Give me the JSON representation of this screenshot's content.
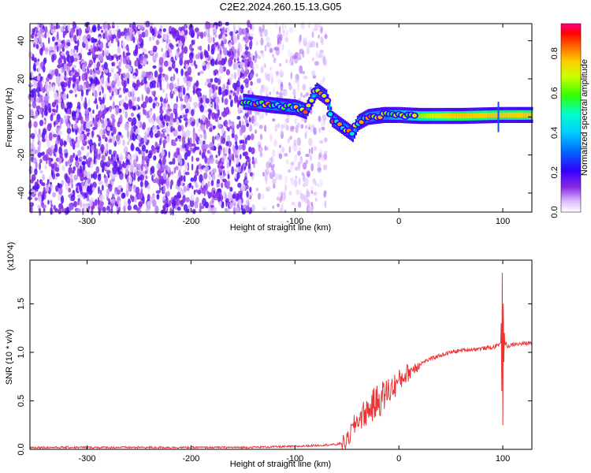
{
  "title": "C2E2.2024.260.15.13.G05",
  "chart_data": [
    {
      "type": "heatmap",
      "xlabel": "Height of straight line (km)",
      "ylabel": "Frequency (Hz)",
      "xlim": [
        -355,
        128
      ],
      "ylim": [
        -50,
        49
      ],
      "x_ticks": [
        -300,
        -200,
        -100,
        0,
        100
      ],
      "y_ticks": [
        -40,
        -20,
        0,
        20,
        40
      ],
      "colorbar": {
        "label": "Normalized spectral amplitude",
        "range": [
          0.0,
          0.95
        ],
        "ticks": [
          0.0,
          0.2,
          0.4,
          0.6,
          0.8
        ],
        "colormap": "rainbow (white-violet-blue-cyan-green-yellow-red-magenta)"
      },
      "features": [
        {
          "name": "noise",
          "x_range": [
            -355,
            -140
          ],
          "freq_range": [
            -50,
            49
          ],
          "amplitude": "low (violet speckle)"
        },
        {
          "name": "sparse noise",
          "x_range": [
            -140,
            -70
          ],
          "freq_range": [
            -50,
            49
          ],
          "amplitude": "very low"
        },
        {
          "name": "signal trace",
          "points": [
            [
              -150,
              8
            ],
            [
              -120,
              6
            ],
            [
              -100,
              5
            ],
            [
              -90,
              3
            ],
            [
              -80,
              14
            ],
            [
              -70,
              10
            ],
            [
              -65,
              -1
            ],
            [
              -55,
              -5
            ],
            [
              -45,
              -9
            ],
            [
              -40,
              -3
            ],
            [
              -30,
              0
            ],
            [
              -15,
              1
            ],
            [
              0,
              1
            ],
            [
              20,
              0.5
            ],
            [
              60,
              0.5
            ],
            [
              95,
              1
            ],
            [
              128,
              1
            ]
          ],
          "peak_amplitude": 0.9
        }
      ],
      "grid": false
    },
    {
      "type": "line",
      "xlabel": "Height of straight line (km)",
      "ylabel": "SNR (10 * v/v)",
      "y_multiplier": "(x10^4)",
      "y_tick_labels": [
        "0.0",
        "0.5",
        "1.0",
        "1.5"
      ],
      "xlim": [
        -355,
        128
      ],
      "ylim": [
        0,
        1.95
      ],
      "x_ticks": [
        -300,
        -200,
        -100,
        0,
        100
      ],
      "y_ticks": [
        0,
        0.5,
        1.0,
        1.5
      ],
      "series": [
        {
          "color": "#ee3333",
          "x": [
            -355,
            -300,
            -250,
            -200,
            -150,
            -100,
            -80,
            -60,
            -50,
            -45,
            -40,
            -35,
            -30,
            -25,
            -20,
            -15,
            -10,
            -5,
            0,
            5,
            10,
            20,
            30,
            40,
            50,
            60,
            70,
            80,
            90,
            95,
            98,
            100,
            102,
            105,
            110,
            120,
            128
          ],
          "y": [
            0.02,
            0.02,
            0.02,
            0.02,
            0.02,
            0.03,
            0.04,
            0.05,
            0.08,
            0.2,
            0.3,
            0.35,
            0.4,
            0.45,
            0.5,
            0.55,
            0.6,
            0.65,
            0.7,
            0.76,
            0.8,
            0.88,
            0.93,
            0.97,
            1.0,
            1.02,
            1.03,
            1.04,
            1.05,
            1.07,
            1.1,
            1.8,
            1.1,
            1.06,
            1.08,
            1.09,
            1.1
          ],
          "annotations": [
            {
              "x": 100,
              "y": 1.82,
              "note": "spike"
            },
            {
              "x": 100,
              "y": 0.25,
              "note": "dip"
            }
          ]
        }
      ],
      "grid": false
    }
  ]
}
